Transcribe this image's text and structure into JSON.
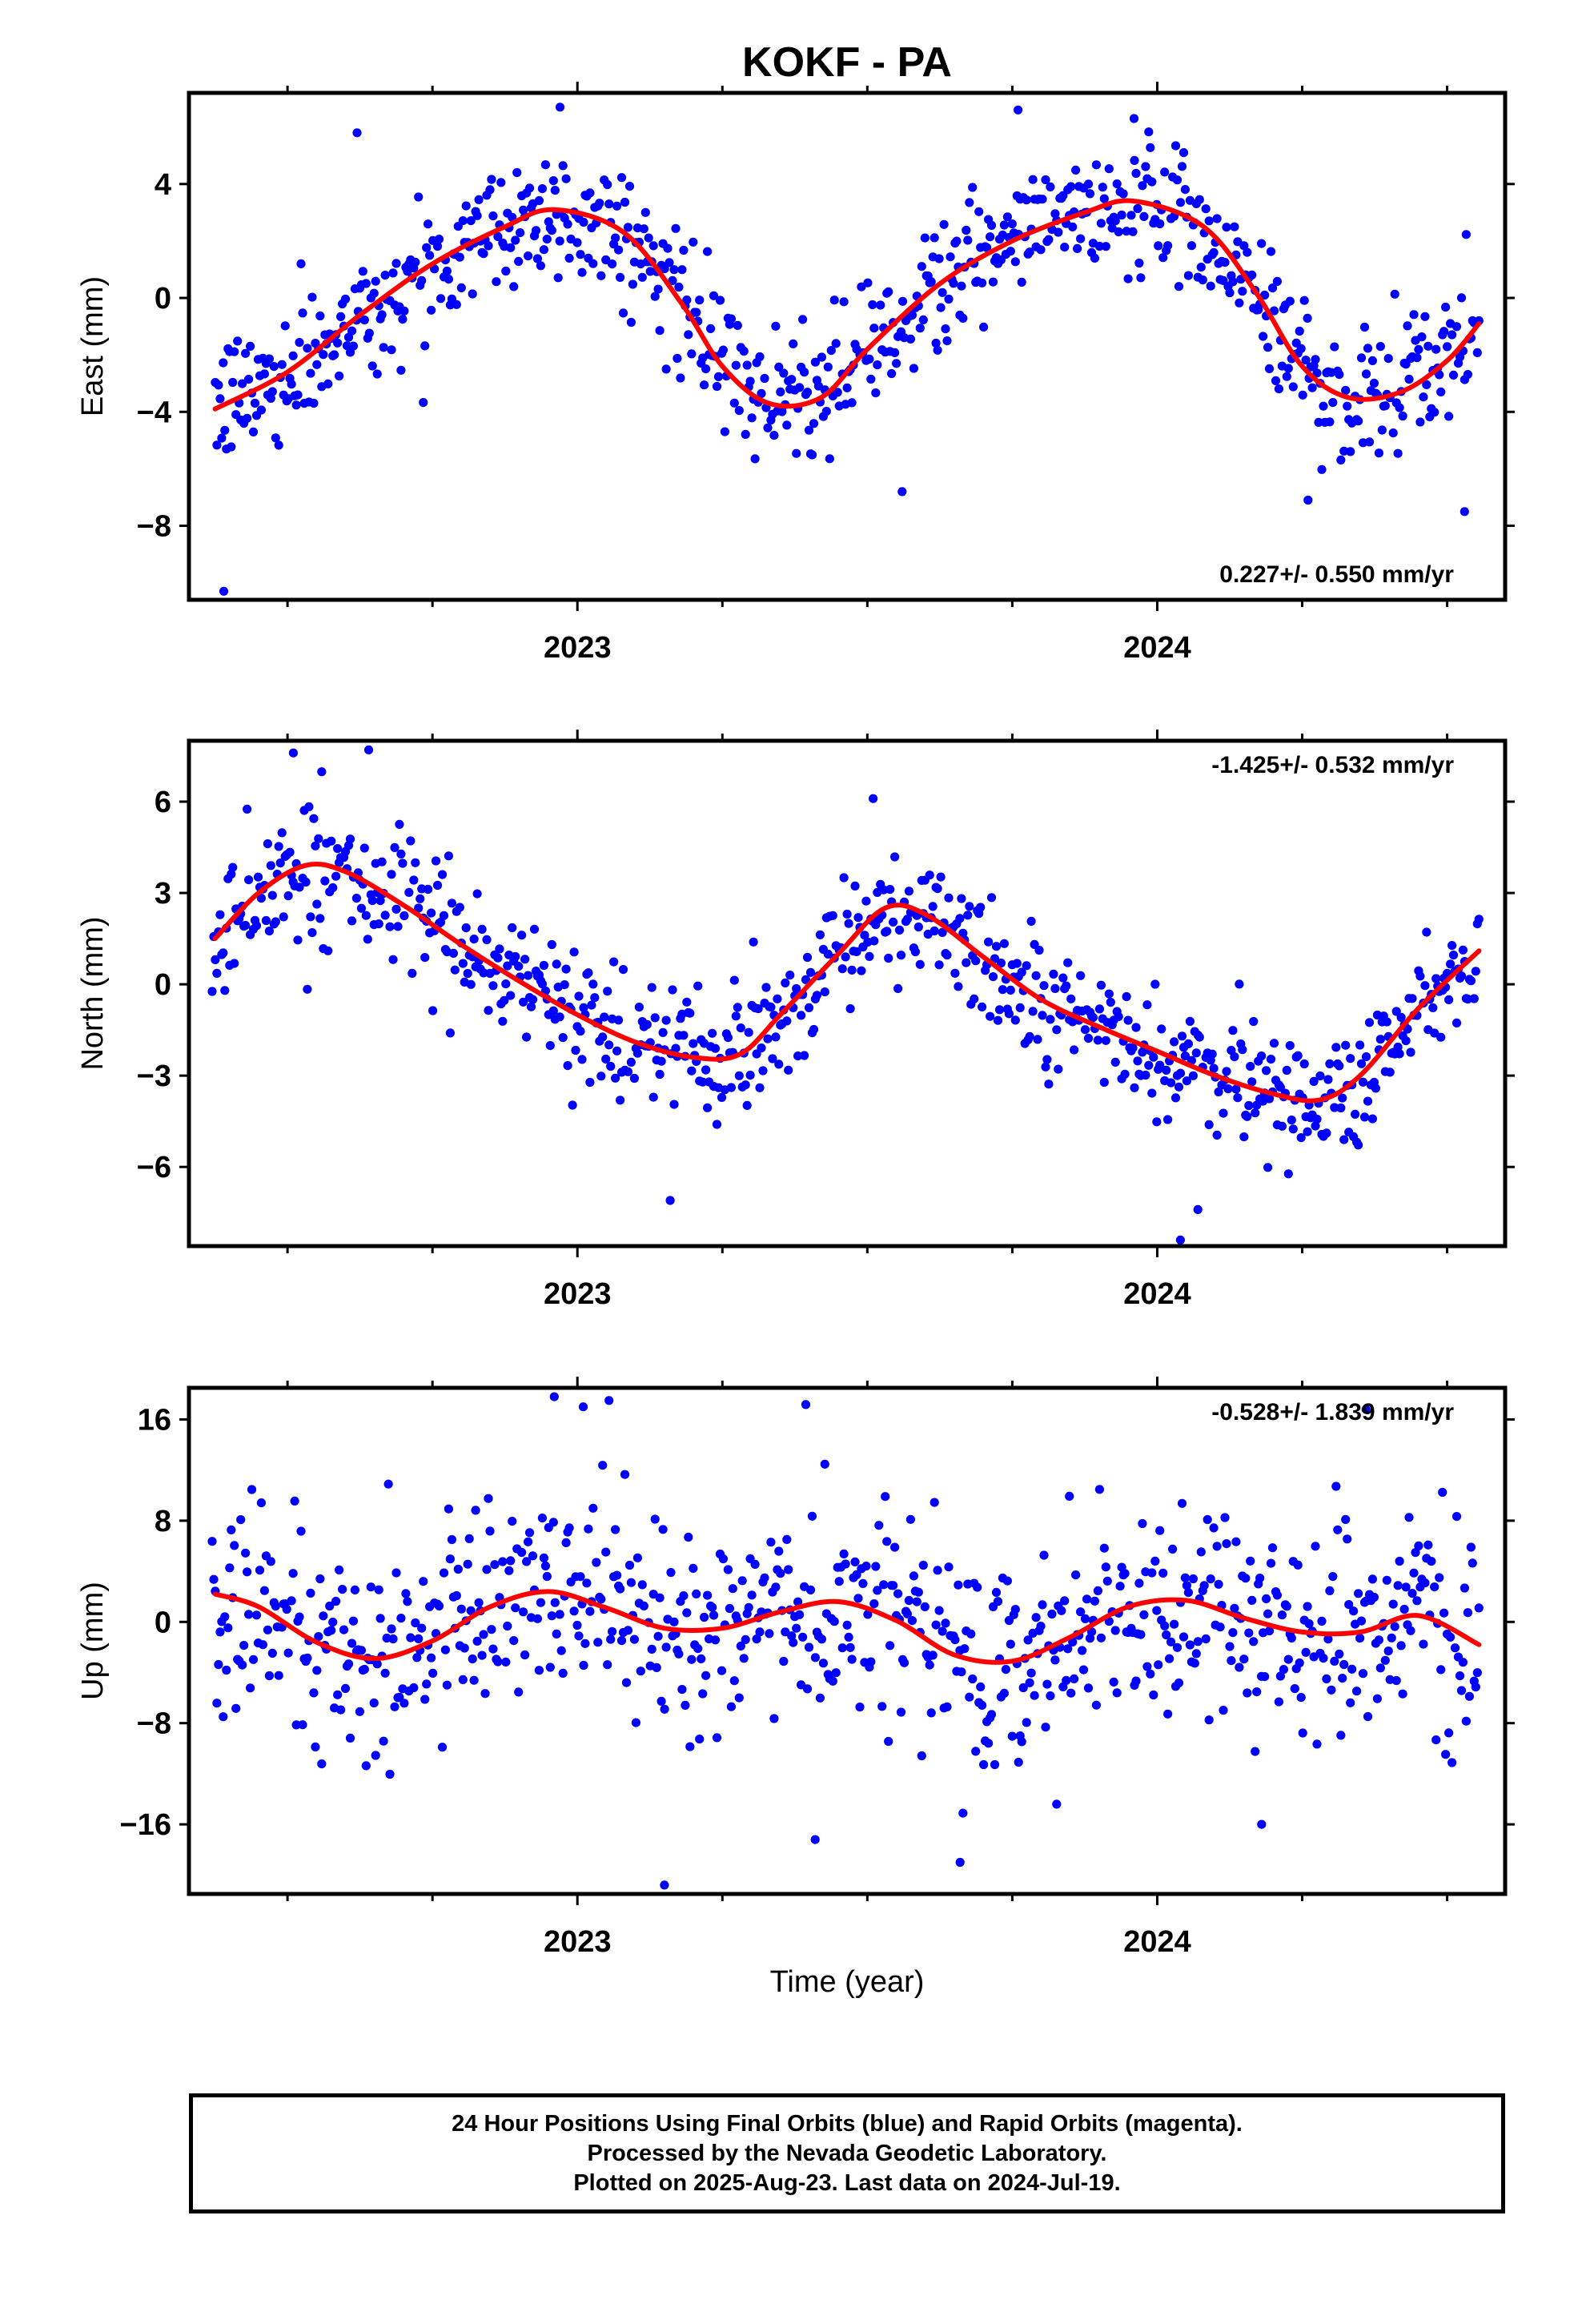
{
  "title": "KOKF - PA",
  "xlabel": "Time (year)",
  "footer": {
    "line1": "24 Hour Positions Using Final Orbits (blue) and Rapid Orbits (magenta).",
    "line2": "Processed by the Nevada Geodetic Laboratory.",
    "line3": "Plotted on 2025-Aug-23. Last data on 2024-Jul-19."
  },
  "colors": {
    "points": "#0000ff",
    "fit": "#ff0000",
    "frame": "#000000"
  },
  "chart_data": [
    {
      "type": "scatter",
      "name": "east",
      "ylabel": "East (mm)",
      "rate_label": "0.227+/- 0.550 mm/yr",
      "rate_position": "bottom-right",
      "xlim": [
        2022.33,
        2024.6
      ],
      "ylim": [
        -10.6,
        7.2
      ],
      "yticks": [
        -8,
        -4,
        0,
        4
      ],
      "ytick_labels": [
        "−8",
        "−4",
        "0",
        "4"
      ],
      "xticks": [
        2023,
        2024
      ],
      "xtick_labels": [
        "2023",
        "2024"
      ],
      "minor_xticks": [
        2022.5,
        2022.75,
        2023.25,
        2023.5,
        2023.75,
        2024.25,
        2024.5
      ],
      "fit_curve": {
        "x": [
          2022.375,
          2022.5,
          2022.625,
          2022.75,
          2022.875,
          2022.96,
          2023.08,
          2023.18,
          2023.25,
          2023.33,
          2023.42,
          2023.5,
          2023.625,
          2023.75,
          2023.875,
          2023.96,
          2024.08,
          2024.17,
          2024.25,
          2024.33,
          2024.42,
          2024.5,
          2024.555
        ],
        "y": [
          -3.9,
          -2.6,
          -0.6,
          1.2,
          2.5,
          3.1,
          2.3,
          -0.2,
          -2.4,
          -3.7,
          -3.5,
          -1.8,
          0.5,
          2.0,
          3.0,
          3.4,
          2.5,
          0.2,
          -2.4,
          -3.5,
          -3.3,
          -2.2,
          -0.9
        ]
      },
      "outliers": [
        {
          "x": 2022.39,
          "y": -10.3
        },
        {
          "x": 2022.62,
          "y": 5.8
        },
        {
          "x": 2022.97,
          "y": 6.7
        },
        {
          "x": 2023.56,
          "y": -6.8
        },
        {
          "x": 2023.76,
          "y": 6.6
        },
        {
          "x": 2023.96,
          "y": 6.3
        },
        {
          "x": 2024.26,
          "y": -7.1
        },
        {
          "x": 2024.53,
          "y": -7.5
        }
      ]
    },
    {
      "type": "scatter",
      "name": "north",
      "ylabel": "North (mm)",
      "rate_label": "-1.425+/- 0.532 mm/yr",
      "rate_position": "top-right",
      "xlim": [
        2022.33,
        2024.6
      ],
      "ylim": [
        -8.6,
        8.0
      ],
      "yticks": [
        -6,
        -3,
        0,
        3,
        6
      ],
      "ytick_labels": [
        "−6",
        "−3",
        "0",
        "3",
        "6"
      ],
      "xticks": [
        2023,
        2024
      ],
      "xtick_labels": [
        "2023",
        "2024"
      ],
      "minor_xticks": [
        2022.5,
        2022.75,
        2023.25,
        2023.5,
        2023.75,
        2024.25,
        2024.5
      ],
      "fit_curve": {
        "x": [
          2022.375,
          2022.45,
          2022.53,
          2022.6,
          2022.7,
          2022.8,
          2022.9,
          2023.0,
          2023.1,
          2023.2,
          2023.28,
          2023.35,
          2023.45,
          2023.53,
          2023.6,
          2023.7,
          2023.8,
          2023.9,
          2024.0,
          2024.1,
          2024.2,
          2024.28,
          2024.35,
          2024.45,
          2024.555
        ],
        "y": [
          1.5,
          3.0,
          3.9,
          3.7,
          2.6,
          1.3,
          0.1,
          -1.0,
          -1.9,
          -2.4,
          -2.3,
          -1.0,
          1.0,
          2.5,
          2.3,
          0.9,
          -0.5,
          -1.4,
          -2.2,
          -3.0,
          -3.6,
          -3.8,
          -3.0,
          -0.8,
          1.1
        ]
      },
      "outliers": [
        {
          "x": 2022.51,
          "y": 7.6
        },
        {
          "x": 2022.64,
          "y": 7.7
        },
        {
          "x": 2023.16,
          "y": -7.1
        },
        {
          "x": 2023.51,
          "y": 6.1
        },
        {
          "x": 2024.04,
          "y": -8.4
        },
        {
          "x": 2024.07,
          "y": -7.4
        }
      ]
    },
    {
      "type": "scatter",
      "name": "up",
      "ylabel": "Up (mm)",
      "rate_label": "-0.528+/- 1.839 mm/yr",
      "rate_position": "top-right",
      "xlim": [
        2022.33,
        2024.6
      ],
      "ylim": [
        -21.5,
        18.5
      ],
      "yticks": [
        -16,
        -8,
        0,
        8,
        16
      ],
      "ytick_labels": [
        "−16",
        "−8",
        "0",
        "8",
        "16"
      ],
      "xticks": [
        2023,
        2024
      ],
      "xtick_labels": [
        "2023",
        "2024"
      ],
      "minor_xticks": [
        2022.5,
        2022.75,
        2023.25,
        2023.5,
        2023.75,
        2024.25,
        2024.5
      ],
      "fit_curve": {
        "x": [
          2022.375,
          2022.45,
          2022.55,
          2022.65,
          2022.75,
          2022.85,
          2022.95,
          2023.05,
          2023.15,
          2023.25,
          2023.35,
          2023.45,
          2023.55,
          2023.65,
          2023.75,
          2023.85,
          2023.95,
          2024.05,
          2024.15,
          2024.25,
          2024.35,
          2024.45,
          2024.555
        ],
        "y": [
          2.2,
          1.2,
          -1.6,
          -2.9,
          -1.5,
          1.2,
          2.4,
          1.1,
          -0.5,
          -0.5,
          0.8,
          1.6,
          0.1,
          -2.6,
          -3.1,
          -1.2,
          1.2,
          1.7,
          0.3,
          -0.8,
          -0.8,
          0.5,
          -1.8
        ]
      },
      "outliers": [
        {
          "x": 2022.96,
          "y": 17.8
        },
        {
          "x": 2023.01,
          "y": 17.0
        },
        {
          "x": 2023.15,
          "y": -20.8
        },
        {
          "x": 2023.41,
          "y": -17.2
        },
        {
          "x": 2023.66,
          "y": -19.0
        },
        {
          "x": 2024.36,
          "y": 16.8
        },
        {
          "x": 2024.18,
          "y": -16.0
        }
      ]
    }
  ]
}
